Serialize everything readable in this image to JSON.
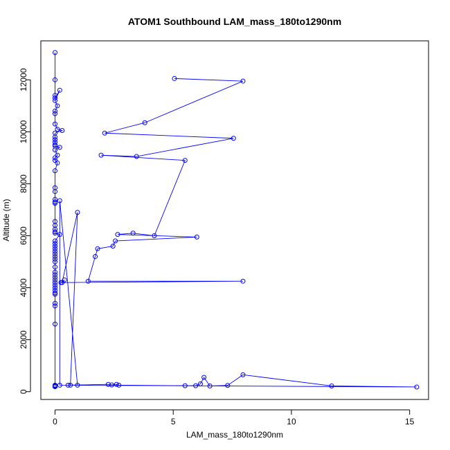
{
  "chart_data": {
    "type": "scatter",
    "title": "ATOM1 Southbound LAM_mass_180to1290nm",
    "xlabel": "LAM_mass_180to1290nm",
    "ylabel": "Altitude (m)",
    "xlim": [
      -0.6,
      15.8
    ],
    "ylim": [
      -300,
      13500
    ],
    "x_ticks": [
      "0",
      "5",
      "10",
      "15"
    ],
    "y_ticks": [
      "0",
      "2000",
      "4000",
      "6000",
      "8000",
      "10000",
      "12000"
    ],
    "x_tick_values": [
      0,
      5,
      10,
      15
    ],
    "y_tick_values": [
      0,
      2000,
      4000,
      6000,
      8000,
      10000,
      12000
    ],
    "style": {
      "color": "#0000ff",
      "markers": "open-circle",
      "connected": true,
      "grid": false,
      "legend": "none"
    },
    "series": [
      {
        "x": [
          0.0,
          0.0,
          0.0,
          0.0,
          0.2,
          0.0,
          0.1,
          0.0,
          0.0,
          0.0,
          0.1,
          0.3,
          0.0,
          0.0,
          0.0,
          0.0,
          0.0,
          0.0,
          0.2,
          0.0,
          0.1,
          0.0,
          0.0,
          0.1,
          0.0,
          0.0,
          0.0,
          0.0,
          0.0,
          0.0,
          0.0,
          0.0,
          0.0,
          0.0,
          0.0,
          0.2,
          0.0,
          0.0,
          0.0,
          0.0,
          0.0,
          0.0,
          0.0,
          0.0,
          0.0,
          0.0,
          0.0,
          0.0,
          0.0,
          0.0,
          0.0,
          0.0,
          0.0,
          0.0,
          0.0,
          0.0,
          0.0,
          0.0,
          0.0,
          0.0,
          0.0,
          0.0,
          0.0,
          0.0,
          0.0,
          0.0,
          0.0,
          0.0,
          0.0,
          0.0,
          0.0,
          0.0,
          0.0,
          0.0,
          0.0,
          0.0,
          0.0,
          0.0,
          0.0,
          0.0
        ],
        "y": [
          13050,
          12000,
          11400,
          11300,
          11600,
          11200,
          11000,
          10800,
          10700,
          10300,
          10100,
          10050,
          9950,
          9800,
          9700,
          9600,
          9500,
          9450,
          9400,
          9300,
          9100,
          9000,
          8900,
          8800,
          8500,
          7850,
          7700,
          7400,
          7300,
          7250,
          6550,
          6400,
          6250,
          6150,
          6100,
          6050,
          5800,
          5700,
          5600,
          5500,
          5400,
          5300,
          5200,
          5100,
          5000,
          4800,
          4600,
          4500,
          4400,
          4300,
          4200,
          4100,
          4000,
          3900,
          3800,
          3750,
          3400,
          3300,
          2600,
          250,
          240,
          230,
          220,
          210,
          200,
          200,
          200,
          200,
          200,
          200,
          200,
          200,
          200,
          200,
          200,
          200,
          200,
          200,
          200,
          200
        ]
      },
      {
        "x": [
          5.05,
          7.95,
          3.8,
          2.1,
          7.55,
          3.45,
          1.95,
          5.5,
          4.2,
          3.3,
          2.65,
          6.0,
          2.55,
          2.45,
          1.8,
          1.7,
          1.4,
          7.95,
          0.25,
          0.4,
          0.3,
          0.95,
          0.65,
          0.55,
          2.25,
          2.4,
          2.6,
          2.7,
          5.5,
          5.95,
          6.15,
          6.3,
          6.55,
          7.3,
          7.95,
          11.7,
          15.3,
          0.2,
          0.2,
          0.95
        ],
        "y": [
          12050,
          11950,
          10350,
          9950,
          9750,
          9050,
          9100,
          8900,
          6000,
          6100,
          6050,
          5950,
          5800,
          5600,
          5500,
          5200,
          4250,
          4250,
          4200,
          4300,
          4200,
          6900,
          250,
          250,
          280,
          260,
          280,
          250,
          230,
          230,
          300,
          550,
          220,
          240,
          650,
          220,
          180,
          250,
          7350,
          250
        ]
      }
    ]
  }
}
